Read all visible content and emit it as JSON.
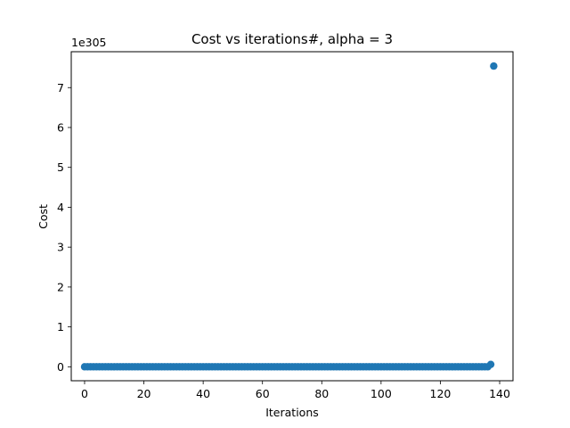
{
  "chart_data": {
    "type": "scatter",
    "title": "Cost vs iterations#, alpha = 3",
    "xlabel": "Iterations",
    "ylabel": "Cost",
    "y_offset_label": "1e305",
    "xlim": [
      -4.5,
      144.5
    ],
    "ylim": [
      -0.35,
      7.9
    ],
    "xticks": [
      0,
      20,
      40,
      60,
      80,
      100,
      120,
      140
    ],
    "yticks": [
      0,
      1,
      2,
      3,
      4,
      5,
      6,
      7
    ],
    "grid": false,
    "legend": "none",
    "marker_color": "#1f77b4",
    "series": [
      {
        "x_start": 0,
        "x_end": 135,
        "y_value": 0,
        "extra_points": [
          {
            "x": 136,
            "y": 0.0
          },
          {
            "x": 137,
            "y": 0.06
          },
          {
            "x": 138,
            "y": 7.54
          }
        ]
      }
    ]
  }
}
